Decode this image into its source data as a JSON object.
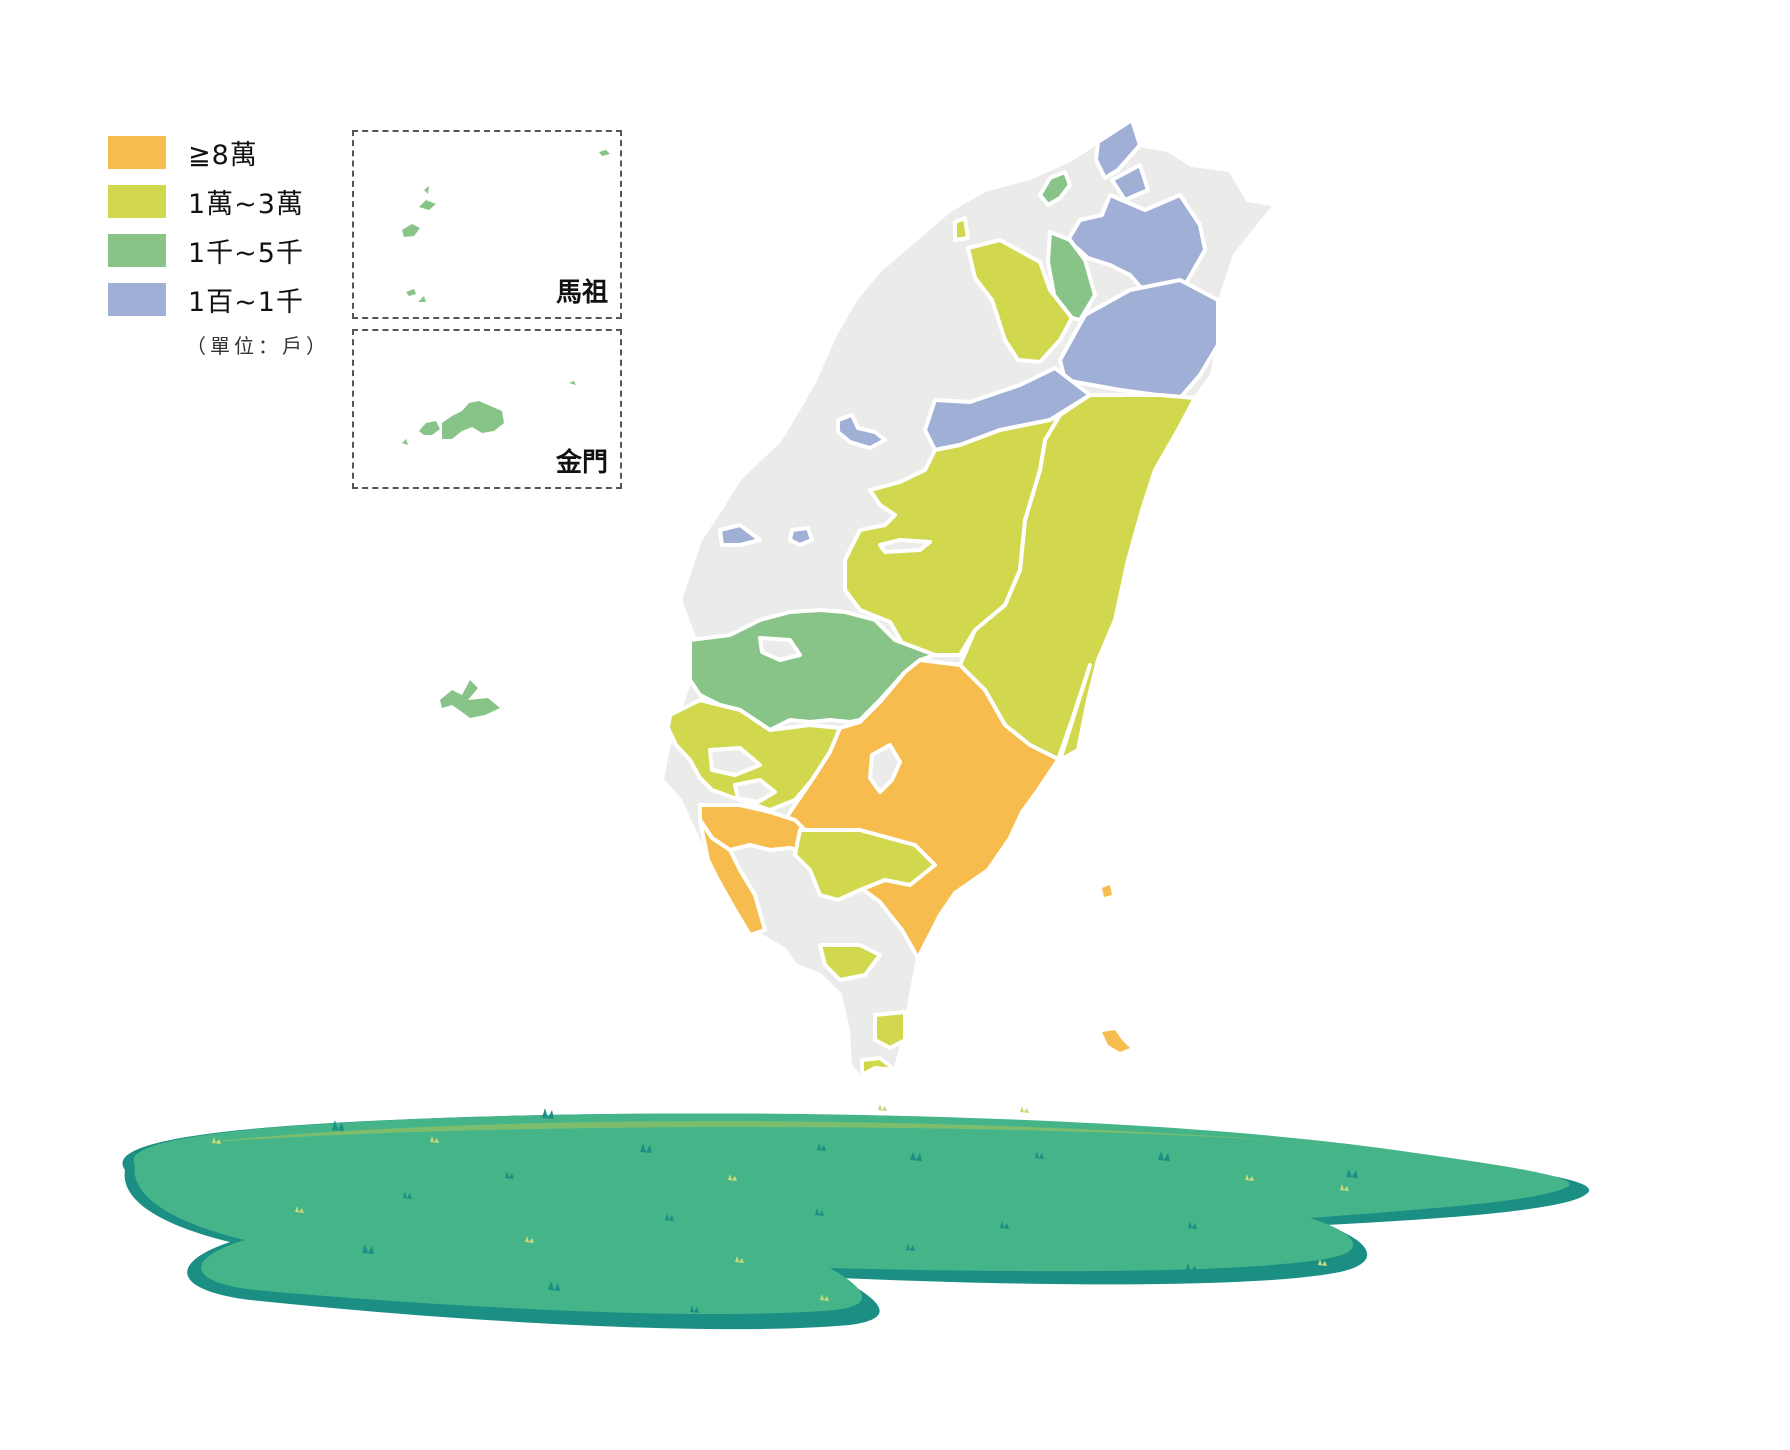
{
  "legend": {
    "items": [
      {
        "label": "≧8萬",
        "color": "#F6BD4E"
      },
      {
        "label": "1萬~3萬",
        "color": "#D2D84E"
      },
      {
        "label": "1千~5千",
        "color": "#88C388"
      },
      {
        "label": "1百~1千",
        "color": "#9FAFD6"
      }
    ],
    "unit": "（單位：戶）"
  },
  "insets": {
    "matsu": "馬祖",
    "kinmen": "金門"
  },
  "colors": {
    "land_base": "#EBEBE9",
    "border": "#ffffff",
    "ground": "#45B589",
    "ground_edge": "#1C8F85",
    "ground_light": "#7DBD6E"
  }
}
